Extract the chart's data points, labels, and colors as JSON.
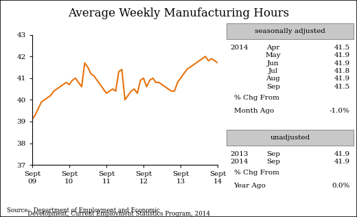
{
  "title": "Average Weekly Manufacturing Hours",
  "line_color": "#E8720C",
  "line_width": 1.5,
  "x_labels": [
    "Sept\n09",
    "Sept\n10",
    "Sept\n11",
    "Sept\n12",
    "Sept\n13",
    "Sept\n14"
  ],
  "x_tick_positions": [
    0,
    12,
    24,
    36,
    48,
    60
  ],
  "ylim": [
    37,
    43
  ],
  "yticks": [
    37,
    38,
    39,
    40,
    41,
    42,
    43
  ],
  "y_values": [
    39.1,
    39.3,
    39.6,
    39.9,
    40.0,
    40.1,
    40.2,
    40.4,
    40.5,
    40.6,
    40.7,
    40.8,
    40.7,
    40.9,
    41.0,
    40.8,
    40.6,
    41.7,
    41.5,
    41.2,
    41.1,
    40.9,
    40.7,
    40.5,
    40.3,
    40.4,
    40.5,
    40.4,
    41.3,
    41.4,
    40.0,
    40.2,
    40.4,
    40.5,
    40.3,
    40.9,
    41.0,
    40.6,
    40.9,
    41.0,
    40.8,
    40.8,
    40.7,
    40.6,
    40.5,
    40.4,
    40.4,
    40.8,
    41.0,
    41.2,
    41.4,
    41.5,
    41.6,
    41.7,
    41.8,
    41.9,
    42.0,
    41.8,
    41.9,
    41.8,
    41.7
  ],
  "source_line1": "Source:  Department of Employment and Economic",
  "source_line2": "           Development, Current Employment Statistics Program, 2014",
  "box1_title": "seasonally adjusted",
  "box1_year": "2014",
  "box1_months": [
    "Apr",
    "May",
    "Jun",
    "Jul",
    "Aug",
    "Sep"
  ],
  "box1_values": [
    "41.5",
    "41.9",
    "41.9",
    "41.8",
    "41.9",
    "41.5"
  ],
  "box1_pct_label1": "% Chg From",
  "box1_pct_label2": "Month Ago",
  "box1_pct_value": "-1.0%",
  "box2_title": "unadjusted",
  "box2_rows": [
    [
      "2013",
      "Sep",
      "41.9"
    ],
    [
      "2014",
      "Sep",
      "41.9"
    ]
  ],
  "box2_pct_label1": "% Chg From",
  "box2_pct_label2": "Year Ago",
  "box2_pct_value": "0.0%",
  "bg_color": "#ffffff",
  "box_bg": "#c8c8c8",
  "text_color": "#000000"
}
